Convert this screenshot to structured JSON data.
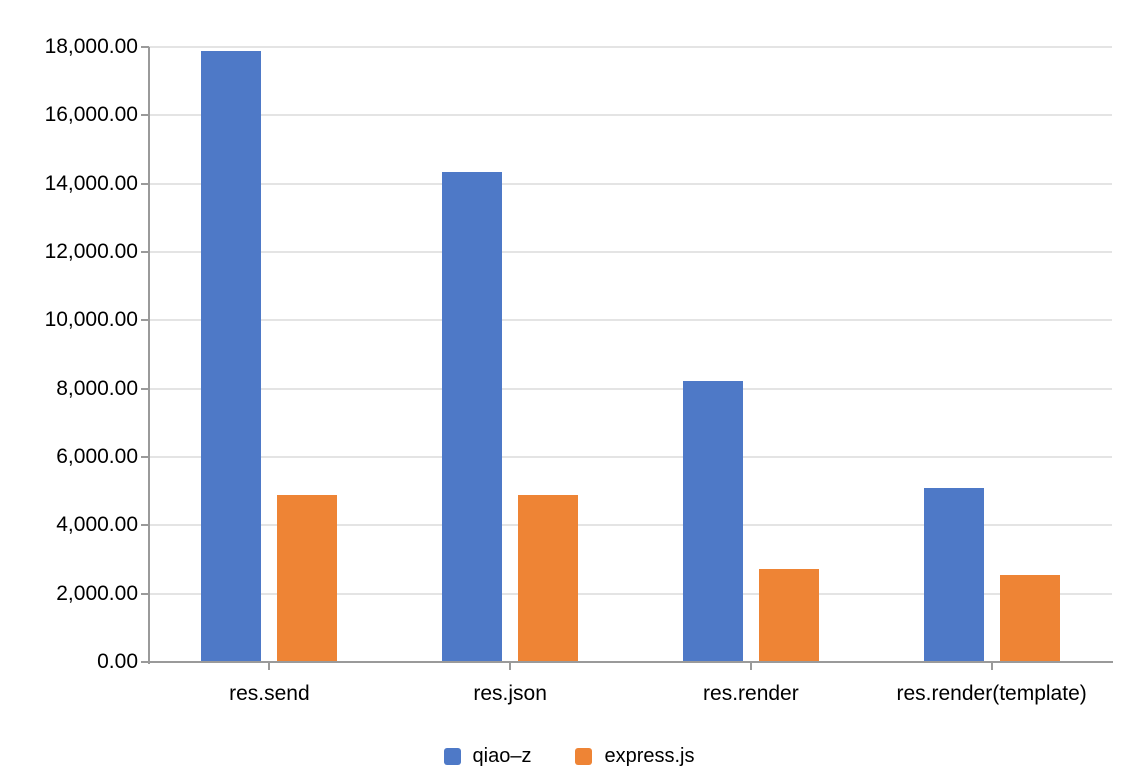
{
  "chart_data": {
    "type": "bar",
    "title": "",
    "xlabel": "",
    "ylabel": "",
    "categories": [
      "res.send",
      "res.json",
      "res.render",
      "res.render(template)"
    ],
    "series": [
      {
        "name": "qiao–z",
        "color": "#4e79c7",
        "values": [
          17880,
          14330,
          8220,
          5100
        ]
      },
      {
        "name": "express.js",
        "color": "#ee8435",
        "values": [
          4890,
          4890,
          2720,
          2540
        ]
      }
    ],
    "ylim": [
      0,
      18000
    ],
    "yticks": [
      {
        "value": 0,
        "label": "0.00"
      },
      {
        "value": 2000,
        "label": "2,000.00"
      },
      {
        "value": 4000,
        "label": "4,000.00"
      },
      {
        "value": 6000,
        "label": "6,000.00"
      },
      {
        "value": 8000,
        "label": "8,000.00"
      },
      {
        "value": 10000,
        "label": "10,000.00"
      },
      {
        "value": 12000,
        "label": "12,000.00"
      },
      {
        "value": 14000,
        "label": "14,000.00"
      },
      {
        "value": 16000,
        "label": "16,000.00"
      },
      {
        "value": 18000,
        "label": "18,000.00"
      }
    ],
    "grid": true,
    "legend_position": "bottom",
    "colors": {
      "gridline": "#e4e4e4",
      "axis": "#9a9a9a",
      "text": "#000000",
      "background": "#ffffff"
    }
  }
}
